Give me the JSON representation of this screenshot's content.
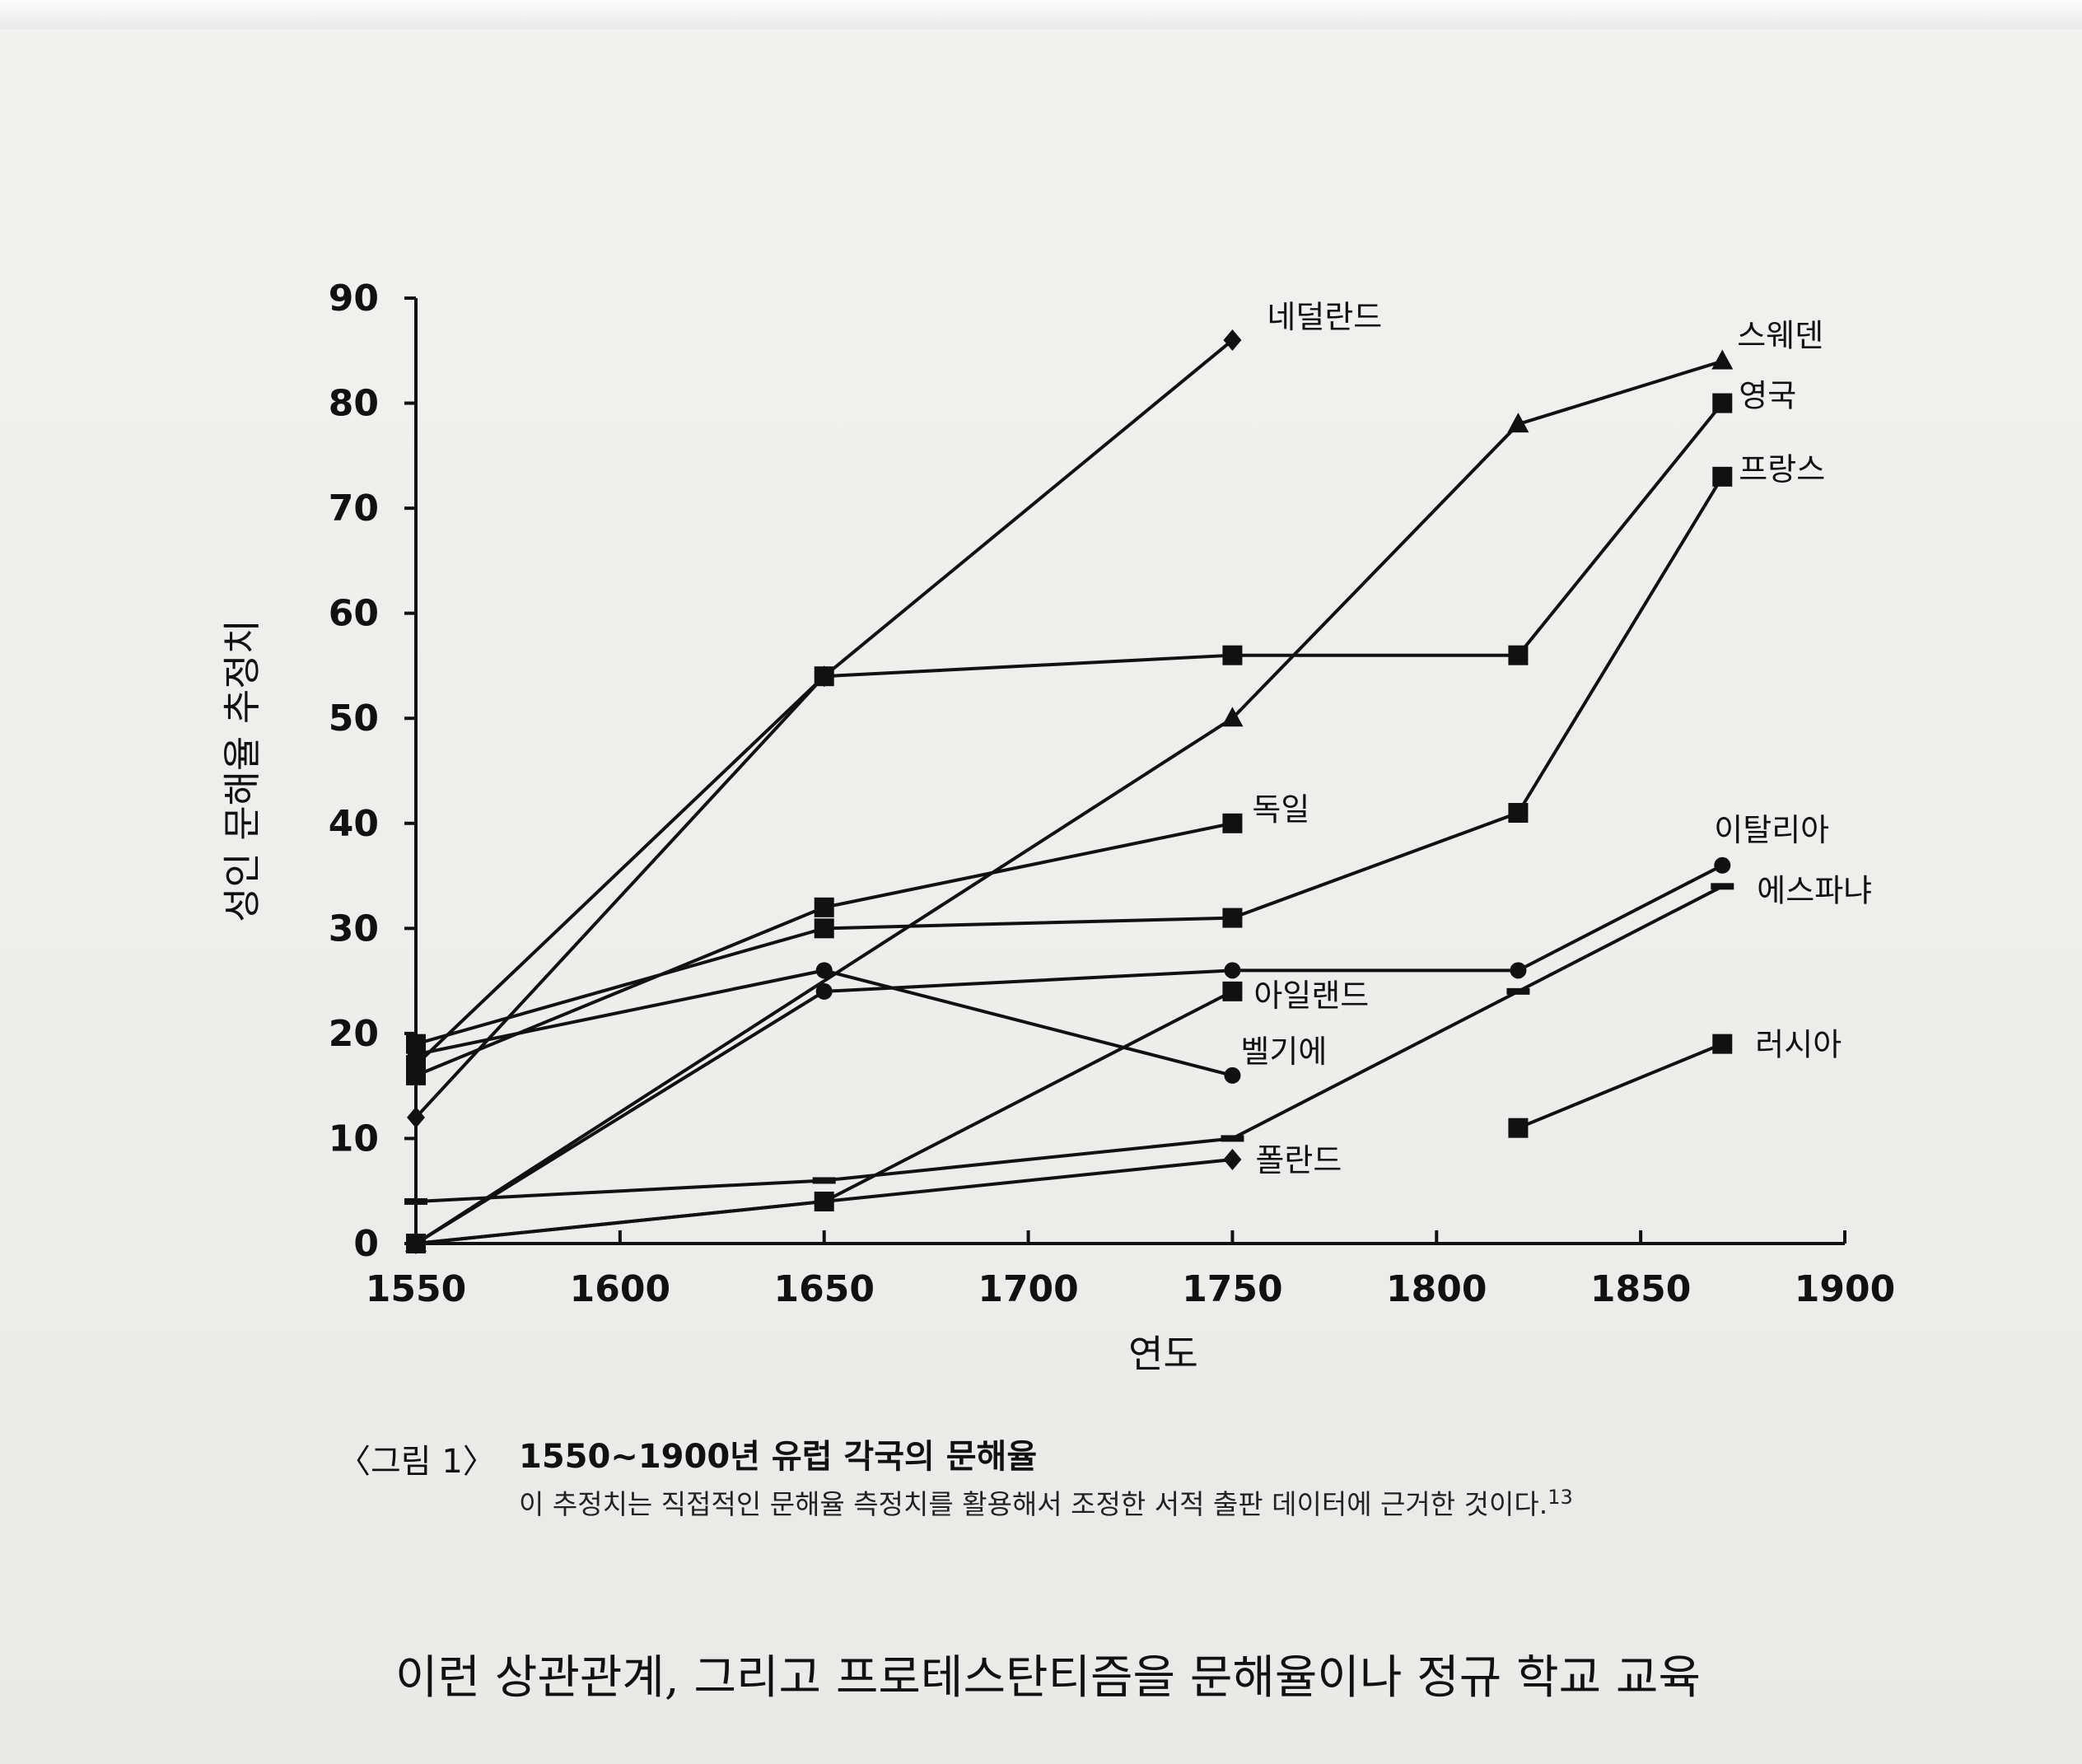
{
  "chart_data": {
    "type": "line",
    "ylabel": "성인 문해율 추정치",
    "xlabel": "연도",
    "xlim": [
      1550,
      1900
    ],
    "ylim": [
      0,
      90
    ],
    "xticks": [
      "1550",
      "1600",
      "1650",
      "1700",
      "1750",
      "1800",
      "1850",
      "1900"
    ],
    "yticks": [
      "0",
      "10",
      "20",
      "30",
      "40",
      "50",
      "60",
      "70",
      "80",
      "90"
    ],
    "grid": false,
    "series": [
      {
        "name": "네덜란드",
        "marker": "diamond",
        "x": [
          1550,
          1650,
          1750
        ],
        "y": [
          12,
          54,
          86
        ]
      },
      {
        "name": "스웨덴",
        "marker": "triangle",
        "x": [
          1550,
          1750,
          1820,
          1870
        ],
        "y": [
          0,
          50,
          78,
          84
        ]
      },
      {
        "name": "영국",
        "marker": "square",
        "x": [
          1550,
          1650,
          1750,
          1820,
          1870
        ],
        "y": [
          17,
          54,
          56,
          56,
          80
        ]
      },
      {
        "name": "프랑스",
        "marker": "square",
        "x": [
          1550,
          1650,
          1750,
          1820,
          1870
        ],
        "y": [
          19,
          30,
          31,
          41,
          73
        ]
      },
      {
        "name": "독일",
        "marker": "square",
        "x": [
          1550,
          1650,
          1750
        ],
        "y": [
          16,
          32,
          40
        ]
      },
      {
        "name": "이탈리아",
        "marker": "circle",
        "x": [
          1550,
          1650,
          1750,
          1820,
          1870
        ],
        "y": [
          0,
          24,
          26,
          26,
          36
        ]
      },
      {
        "name": "에스파냐",
        "marker": "dash",
        "x": [
          1550,
          1650,
          1750,
          1820,
          1870
        ],
        "y": [
          4,
          6,
          10,
          24,
          34
        ]
      },
      {
        "name": "아일랜드",
        "marker": "square",
        "x": [
          1550,
          1650,
          1750
        ],
        "y": [
          0,
          4,
          24
        ]
      },
      {
        "name": "벨기에",
        "marker": "circle",
        "x": [
          1550,
          1650,
          1750
        ],
        "y": [
          18,
          26,
          16
        ]
      },
      {
        "name": "폴란드",
        "marker": "diamond",
        "x": [
          1550,
          1750
        ],
        "y": [
          0,
          8
        ]
      },
      {
        "name": "러시아",
        "marker": "square",
        "x": [
          1820,
          1870
        ],
        "y": [
          11,
          19
        ]
      }
    ]
  },
  "caption": {
    "number": "〈그림 1〉",
    "title": "1550~1900년 유럽 각국의 문해율",
    "note": "이 추정치는 직접적인 문해율 측정치를 활용해서 조정한 서적 출판 데이터에 근거한 것이다.",
    "note_ref": "13"
  },
  "body_text": "이런 상관관계, 그리고 프로테스탄티즘을 문해율이나 정규 학교 교육"
}
